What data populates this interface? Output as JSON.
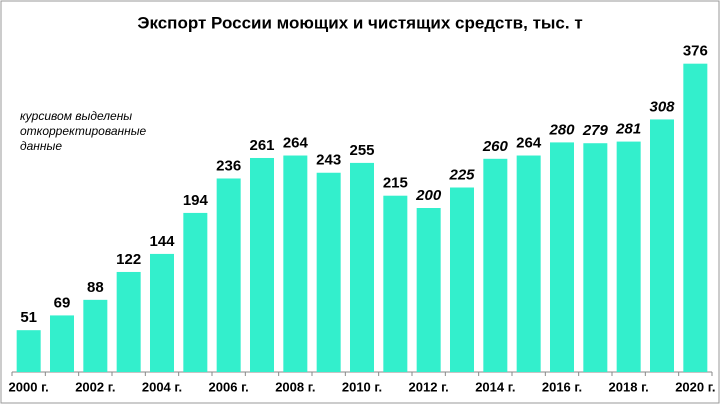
{
  "chart_data": {
    "type": "bar",
    "title": "Экспорт России моющих и чистящих средств, тыс. т",
    "annotation": [
      "курсивом выделены",
      "откорректированные",
      "данные"
    ],
    "categories": [
      "2000 г.",
      null,
      "2002 г.",
      null,
      "2004 г.",
      null,
      "2006 г.",
      null,
      "2008 г.",
      null,
      "2010 г.",
      null,
      "2012 г.",
      null,
      "2014 г.",
      null,
      "2016 г.",
      null,
      "2018 г.",
      null,
      "2020 г."
    ],
    "values": [
      51,
      69,
      88,
      122,
      144,
      194,
      236,
      261,
      264,
      243,
      255,
      215,
      200,
      225,
      260,
      264,
      280,
      279,
      281,
      308,
      376
    ],
    "italic": [
      false,
      false,
      false,
      false,
      false,
      false,
      false,
      false,
      false,
      false,
      false,
      false,
      true,
      true,
      true,
      false,
      true,
      true,
      true,
      true,
      false
    ],
    "color": "#33efcc",
    "ylim": [
      0,
      400
    ]
  }
}
